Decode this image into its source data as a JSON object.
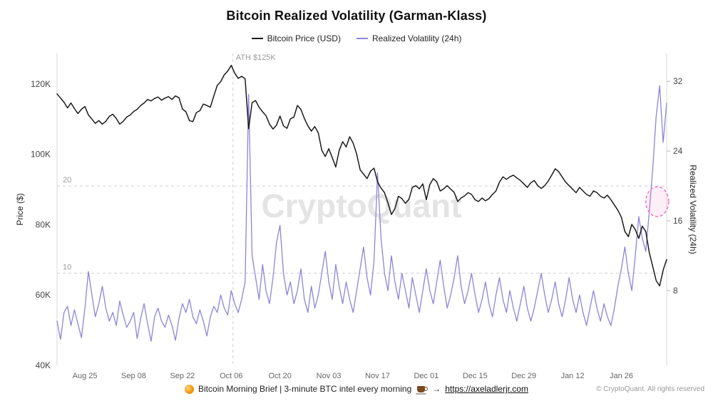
{
  "title": "Bitcoin Realized Volatility (Garman-Klass)",
  "watermark": "CryptoQuant",
  "legend": {
    "items": [
      {
        "label": "Bitcoin Price (USD)",
        "color": "#1a1a1a"
      },
      {
        "label": "Realized Volatility (24h)",
        "color": "#8d84da"
      }
    ]
  },
  "footer": {
    "icon": "🟠",
    "text": "Bitcoin Morning Brief | 3-minute BTC intel every morning",
    "coffee": "☕",
    "arrow": "→",
    "link": "https://axeladlerjr.com",
    "copyright": "© CryptoQuant. All rights reserved"
  },
  "chart_data": {
    "type": "line",
    "title": "Bitcoin Realized Volatility (Garman-Klass)",
    "x_unit": "days since Aug 17",
    "x_max": 175,
    "x_ticks": [
      {
        "day": 8,
        "label": "Aug 25"
      },
      {
        "day": 22,
        "label": "Sep 08"
      },
      {
        "day": 36,
        "label": "Sep 22"
      },
      {
        "day": 50,
        "label": "Oct 06"
      },
      {
        "day": 64,
        "label": "Oct 20"
      },
      {
        "day": 78,
        "label": "Nov 03"
      },
      {
        "day": 92,
        "label": "Nov 17"
      },
      {
        "day": 106,
        "label": "Dec 01"
      },
      {
        "day": 120,
        "label": "Dec 15"
      },
      {
        "day": 134,
        "label": "Dec 29"
      },
      {
        "day": 148,
        "label": "Jan 12"
      },
      {
        "day": 162,
        "label": "Jan 26"
      }
    ],
    "left_axis": {
      "title": "Price ($)",
      "unit": "USD thousands",
      "range": [
        40,
        128.7
      ],
      "ticks": [
        {
          "v": 40,
          "label": "40K"
        },
        {
          "v": 60,
          "label": "60K"
        },
        {
          "v": 80,
          "label": "80K"
        },
        {
          "v": 100,
          "label": "100K"
        },
        {
          "v": 120,
          "label": "120K"
        }
      ]
    },
    "right_axis": {
      "title": "Realized Volatility (24h)",
      "range": [
        0,
        35.2
      ],
      "ticks": [
        8,
        16,
        24,
        32
      ],
      "gridlines": [
        10,
        20
      ]
    },
    "annotation": {
      "label": "ATH $125K",
      "day": 50.5
    },
    "highlight": {
      "day": 172.3,
      "vol": 18.2
    },
    "series": [
      {
        "name": "Bitcoin Price (USD)",
        "axis": "left",
        "color": "#1a1a1a",
        "values": [
          117.2,
          116.0,
          114.8,
          113.2,
          114.6,
          113.0,
          111.6,
          112.8,
          113.6,
          111.2,
          110.0,
          108.8,
          109.6,
          108.6,
          109.4,
          110.8,
          111.4,
          110.2,
          108.6,
          109.4,
          110.6,
          111.2,
          112.2,
          112.8,
          113.9,
          114.6,
          115.6,
          115.2,
          115.9,
          116.3,
          115.4,
          116.0,
          116.4,
          115.6,
          116.6,
          116.1,
          112.9,
          112.1,
          109.6,
          109.3,
          111.9,
          112.4,
          114.3,
          113.9,
          113.4,
          116.6,
          119.6,
          120.7,
          122.6,
          123.7,
          125.3,
          123.1,
          121.6,
          122.2,
          121.5,
          107.3,
          114.7,
          115.3,
          113.4,
          112.1,
          111.0,
          108.6,
          107.2,
          108.3,
          110.9,
          108.1,
          107.4,
          110.1,
          110.6,
          113.9,
          112.8,
          110.2,
          108.1,
          106.6,
          107.9,
          106.1,
          101.2,
          99.4,
          101.6,
          99.1,
          96.4,
          101.1,
          103.6,
          102.1,
          105.0,
          103.2,
          100.1,
          95.6,
          94.4,
          93.1,
          95.2,
          96.1,
          92.2,
          90.4,
          89.1,
          86.2,
          82.9,
          84.6,
          88.1,
          87.4,
          86.1,
          87.2,
          90.6,
          91.1,
          90.2,
          91.6,
          87.1,
          91.4,
          93.1,
          92.2,
          89.6,
          90.2,
          91.1,
          90.1,
          89.2,
          86.6,
          87.6,
          88.2,
          89.1,
          88.6,
          87.1,
          86.6,
          87.6,
          86.8,
          87.4,
          88.6,
          89.6,
          92.1,
          93.6,
          92.9,
          93.6,
          94.1,
          93.3,
          92.6,
          91.6,
          90.6,
          91.9,
          92.6,
          91.1,
          90.3,
          91.1,
          92.4,
          94.1,
          95.9,
          95.1,
          93.6,
          92.1,
          91.1,
          90.1,
          89.1,
          90.6,
          89.6,
          88.6,
          88.1,
          89.6,
          89.1,
          88.1,
          87.6,
          88.4,
          87.1,
          85.6,
          84.1,
          82.1,
          78.1,
          76.6,
          80.1,
          78.6,
          76.1,
          79.6,
          78.1,
          72.1,
          68.1,
          64.1,
          62.6,
          67.1,
          70.1
        ]
      },
      {
        "name": "Realized Volatility (24h)",
        "axis": "right",
        "color": "#8d84da",
        "values": [
          4.5,
          2.4,
          5.5,
          6.2,
          4.0,
          5.8,
          4.2,
          2.6,
          6.0,
          10.2,
          7.5,
          5.0,
          6.5,
          8.5,
          6.0,
          4.5,
          5.5,
          4.0,
          6.8,
          5.2,
          3.8,
          4.5,
          5.5,
          2.5,
          4.8,
          6.5,
          4.2,
          2.2,
          5.0,
          6.0,
          4.5,
          3.8,
          5.2,
          4.0,
          2.3,
          4.8,
          6.5,
          5.5,
          7.0,
          5.0,
          4.2,
          5.8,
          4.5,
          2.8,
          5.0,
          6.2,
          5.5,
          7.5,
          6.0,
          5.2,
          8.0,
          6.5,
          5.5,
          7.0,
          9.0,
          30.5,
          12.0,
          9.5,
          7.0,
          11.0,
          8.0,
          6.5,
          9.5,
          13.5,
          15.5,
          10.0,
          7.5,
          9.0,
          6.5,
          8.0,
          10.5,
          7.0,
          5.5,
          8.5,
          6.0,
          7.5,
          10.0,
          12.5,
          9.0,
          7.0,
          11.0,
          8.5,
          6.5,
          9.0,
          7.0,
          5.5,
          8.0,
          10.5,
          13.0,
          9.5,
          7.5,
          11.5,
          21.5,
          14.0,
          10.0,
          8.0,
          12.0,
          9.0,
          7.0,
          10.0,
          8.0,
          6.0,
          9.5,
          7.5,
          5.5,
          8.0,
          10.5,
          8.0,
          6.5,
          9.0,
          11.5,
          8.5,
          6.0,
          7.5,
          9.5,
          12.0,
          8.5,
          6.5,
          8.0,
          10.0,
          7.5,
          5.5,
          7.0,
          9.0,
          6.5,
          5.0,
          7.5,
          9.5,
          7.0,
          5.5,
          8.0,
          6.0,
          4.5,
          6.5,
          8.5,
          6.0,
          4.5,
          6.0,
          8.0,
          10.0,
          7.5,
          5.5,
          7.0,
          9.0,
          6.5,
          5.0,
          7.0,
          9.5,
          7.0,
          5.5,
          7.5,
          5.5,
          4.0,
          6.0,
          8.0,
          6.0,
          4.5,
          6.5,
          5.0,
          4.0,
          6.0,
          8.5,
          10.5,
          13.0,
          10.0,
          8.0,
          12.0,
          16.5,
          14.0,
          12.5,
          17.0,
          22.0,
          28.0,
          31.5,
          25.0,
          29.5
        ]
      }
    ]
  }
}
